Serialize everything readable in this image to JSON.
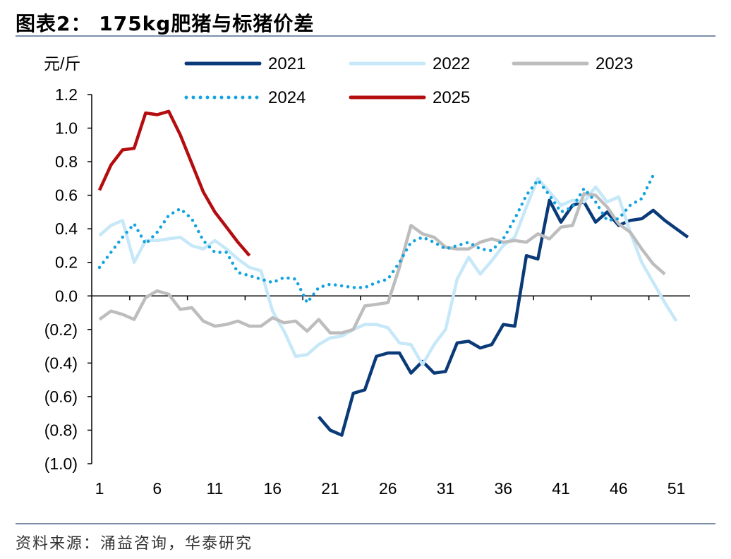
{
  "page": {
    "title": "图表2： 175kg肥猪与标猪价差",
    "source": "资料来源：涌益咨询，华泰研究"
  },
  "colors": {
    "2021": "#0b3a78",
    "2022": "#c6e8f8",
    "2023": "#bdbdbd",
    "2024": "#13a3e0",
    "2025": "#b40d10",
    "rule": "#7d8fa8",
    "axis": "#000000"
  },
  "chart_data": {
    "type": "line",
    "ylabel": "元/斤",
    "xlabel": "",
    "ylim": [
      -1.0,
      1.2
    ],
    "xlim": [
      1,
      53
    ],
    "yticks": [
      1.2,
      1.0,
      0.8,
      0.6,
      0.4,
      0.2,
      0.0,
      -0.2,
      -0.4,
      -0.6,
      -0.8,
      -1.0
    ],
    "ytick_labels": [
      "1.2",
      "1.0",
      "0.8",
      "0.6",
      "0.4",
      "0.2",
      "0.0",
      "(0.2)",
      "(0.4)",
      "(0.6)",
      "(0.8)",
      "(1.0)"
    ],
    "xticks": [
      1,
      6,
      11,
      16,
      21,
      26,
      31,
      36,
      41,
      46,
      51
    ],
    "xtick_labels": [
      "1",
      "6",
      "11",
      "16",
      "21",
      "26",
      "31",
      "36",
      "41",
      "46",
      "51"
    ],
    "grid": false,
    "legend_position": "top",
    "series": [
      {
        "name": "2021",
        "style": "solid",
        "points": [
          [
            20,
            -0.72
          ],
          [
            21,
            -0.8
          ],
          [
            22,
            -0.83
          ],
          [
            23,
            -0.58
          ],
          [
            24,
            -0.56
          ],
          [
            25,
            -0.36
          ],
          [
            26,
            -0.34
          ],
          [
            27,
            -0.34
          ],
          [
            28,
            -0.46
          ],
          [
            29,
            -0.39
          ],
          [
            30,
            -0.46
          ],
          [
            31,
            -0.45
          ],
          [
            32,
            -0.28
          ],
          [
            33,
            -0.27
          ],
          [
            34,
            -0.31
          ],
          [
            35,
            -0.29
          ],
          [
            36,
            -0.17
          ],
          [
            37,
            -0.18
          ],
          [
            38,
            0.24
          ],
          [
            39,
            0.22
          ],
          [
            40,
            0.57
          ],
          [
            41,
            0.44
          ],
          [
            42,
            0.54
          ],
          [
            43,
            0.56
          ],
          [
            44,
            0.44
          ],
          [
            45,
            0.5
          ],
          [
            46,
            0.42
          ],
          [
            47,
            0.45
          ],
          [
            48,
            0.46
          ],
          [
            49,
            0.51
          ],
          [
            50,
            0.45
          ],
          [
            51,
            0.4
          ],
          [
            52,
            0.35
          ]
        ]
      },
      {
        "name": "2022",
        "style": "solid",
        "points": [
          [
            1,
            0.36
          ],
          [
            2,
            0.42
          ],
          [
            3,
            0.45
          ],
          [
            4,
            0.2
          ],
          [
            5,
            0.33
          ],
          [
            6,
            0.33
          ],
          [
            7,
            0.34
          ],
          [
            8,
            0.35
          ],
          [
            9,
            0.3
          ],
          [
            10,
            0.28
          ],
          [
            11,
            0.33
          ],
          [
            12,
            0.28
          ],
          [
            13,
            0.22
          ],
          [
            14,
            0.17
          ],
          [
            15,
            0.15
          ],
          [
            16,
            -0.09
          ],
          [
            17,
            -0.21
          ],
          [
            18,
            -0.36
          ],
          [
            19,
            -0.35
          ],
          [
            20,
            -0.29
          ],
          [
            21,
            -0.25
          ],
          [
            22,
            -0.24
          ],
          [
            23,
            -0.2
          ],
          [
            24,
            -0.17
          ],
          [
            25,
            -0.17
          ],
          [
            26,
            -0.19
          ],
          [
            27,
            -0.28
          ],
          [
            28,
            -0.29
          ],
          [
            29,
            -0.41
          ],
          [
            30,
            -0.29
          ],
          [
            31,
            -0.2
          ],
          [
            32,
            0.1
          ],
          [
            33,
            0.23
          ],
          [
            34,
            0.13
          ],
          [
            35,
            0.21
          ],
          [
            36,
            0.3
          ],
          [
            37,
            0.35
          ],
          [
            38,
            0.53
          ],
          [
            39,
            0.7
          ],
          [
            40,
            0.62
          ],
          [
            41,
            0.54
          ],
          [
            42,
            0.57
          ],
          [
            43,
            0.56
          ],
          [
            44,
            0.65
          ],
          [
            45,
            0.56
          ],
          [
            46,
            0.59
          ],
          [
            47,
            0.38
          ],
          [
            48,
            0.2
          ],
          [
            49,
            0.08
          ],
          [
            50,
            -0.04
          ],
          [
            51,
            -0.15
          ]
        ]
      },
      {
        "name": "2023",
        "style": "solid",
        "points": [
          [
            1,
            -0.14
          ],
          [
            2,
            -0.09
          ],
          [
            3,
            -0.11
          ],
          [
            4,
            -0.14
          ],
          [
            5,
            -0.01
          ],
          [
            6,
            0.03
          ],
          [
            7,
            0.01
          ],
          [
            8,
            -0.08
          ],
          [
            9,
            -0.07
          ],
          [
            10,
            -0.15
          ],
          [
            11,
            -0.18
          ],
          [
            12,
            -0.17
          ],
          [
            13,
            -0.15
          ],
          [
            14,
            -0.18
          ],
          [
            15,
            -0.18
          ],
          [
            16,
            -0.13
          ],
          [
            17,
            -0.16
          ],
          [
            18,
            -0.15
          ],
          [
            19,
            -0.21
          ],
          [
            20,
            -0.14
          ],
          [
            21,
            -0.22
          ],
          [
            22,
            -0.22
          ],
          [
            23,
            -0.2
          ],
          [
            24,
            -0.06
          ],
          [
            25,
            -0.05
          ],
          [
            26,
            -0.04
          ],
          [
            27,
            0.17
          ],
          [
            28,
            0.42
          ],
          [
            29,
            0.37
          ],
          [
            30,
            0.35
          ],
          [
            31,
            0.29
          ],
          [
            32,
            0.28
          ],
          [
            33,
            0.28
          ],
          [
            34,
            0.32
          ],
          [
            35,
            0.34
          ],
          [
            36,
            0.32
          ],
          [
            37,
            0.33
          ],
          [
            38,
            0.32
          ],
          [
            39,
            0.37
          ],
          [
            40,
            0.34
          ],
          [
            41,
            0.41
          ],
          [
            42,
            0.42
          ],
          [
            43,
            0.61
          ],
          [
            44,
            0.6
          ],
          [
            45,
            0.53
          ],
          [
            46,
            0.43
          ],
          [
            47,
            0.38
          ],
          [
            48,
            0.28
          ],
          [
            49,
            0.19
          ],
          [
            50,
            0.13
          ]
        ]
      },
      {
        "name": "2024",
        "style": "dotted",
        "points": [
          [
            1,
            0.17
          ],
          [
            2,
            0.26
          ],
          [
            3,
            0.35
          ],
          [
            4,
            0.43
          ],
          [
            5,
            0.31
          ],
          [
            6,
            0.38
          ],
          [
            7,
            0.48
          ],
          [
            8,
            0.52
          ],
          [
            9,
            0.46
          ],
          [
            10,
            0.33
          ],
          [
            11,
            0.26
          ],
          [
            12,
            0.26
          ],
          [
            13,
            0.14
          ],
          [
            14,
            0.12
          ],
          [
            15,
            0.1
          ],
          [
            16,
            0.08
          ],
          [
            17,
            0.11
          ],
          [
            18,
            0.1
          ],
          [
            19,
            -0.04
          ],
          [
            20,
            0.05
          ],
          [
            21,
            0.07
          ],
          [
            22,
            0.06
          ],
          [
            23,
            0.05
          ],
          [
            24,
            0.05
          ],
          [
            25,
            0.08
          ],
          [
            26,
            0.1
          ],
          [
            27,
            0.2
          ],
          [
            28,
            0.32
          ],
          [
            29,
            0.35
          ],
          [
            30,
            0.32
          ],
          [
            31,
            0.28
          ],
          [
            32,
            0.3
          ],
          [
            33,
            0.32
          ],
          [
            34,
            0.28
          ],
          [
            35,
            0.27
          ],
          [
            36,
            0.34
          ],
          [
            37,
            0.46
          ],
          [
            38,
            0.6
          ],
          [
            39,
            0.69
          ],
          [
            40,
            0.6
          ],
          [
            41,
            0.5
          ],
          [
            42,
            0.53
          ],
          [
            43,
            0.64
          ],
          [
            44,
            0.56
          ],
          [
            45,
            0.45
          ],
          [
            46,
            0.46
          ],
          [
            47,
            0.54
          ],
          [
            48,
            0.58
          ],
          [
            49,
            0.72
          ]
        ]
      },
      {
        "name": "2025",
        "style": "solid",
        "points": [
          [
            1,
            0.63
          ],
          [
            2,
            0.78
          ],
          [
            3,
            0.87
          ],
          [
            4,
            0.88
          ],
          [
            5,
            1.09
          ],
          [
            6,
            1.08
          ],
          [
            7,
            1.1
          ],
          [
            8,
            0.96
          ],
          [
            9,
            0.79
          ],
          [
            10,
            0.62
          ],
          [
            11,
            0.5
          ],
          [
            12,
            0.41
          ],
          [
            13,
            0.32
          ],
          [
            14,
            0.24
          ]
        ]
      }
    ],
    "legend": [
      {
        "name": "2021",
        "style": "solid"
      },
      {
        "name": "2022",
        "style": "solid"
      },
      {
        "name": "2023",
        "style": "solid"
      },
      {
        "name": "2024",
        "style": "dotted"
      },
      {
        "name": "2025",
        "style": "solid"
      }
    ]
  }
}
